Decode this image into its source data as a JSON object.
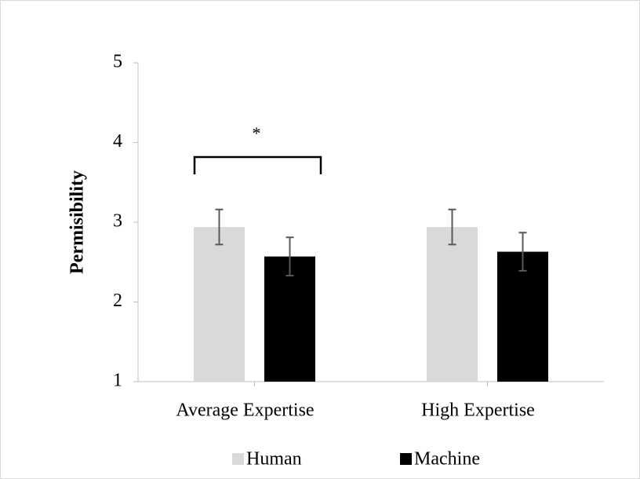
{
  "chart_data": {
    "type": "bar",
    "categories": [
      "Average Expertise",
      "High Expertise"
    ],
    "series": [
      {
        "name": "Human",
        "color": "#d9d9d9",
        "values": [
          2.94,
          2.94
        ],
        "errors": [
          0.22,
          0.22
        ]
      },
      {
        "name": "Machine",
        "color": "#000000",
        "values": [
          2.57,
          2.63
        ],
        "errors": [
          0.24,
          0.24
        ]
      }
    ],
    "ylabel": "Permisibility",
    "ylim": [
      1,
      5
    ],
    "yticks": [
      1,
      2,
      3,
      4,
      5
    ],
    "annotation": "*",
    "legend": "bottom"
  }
}
